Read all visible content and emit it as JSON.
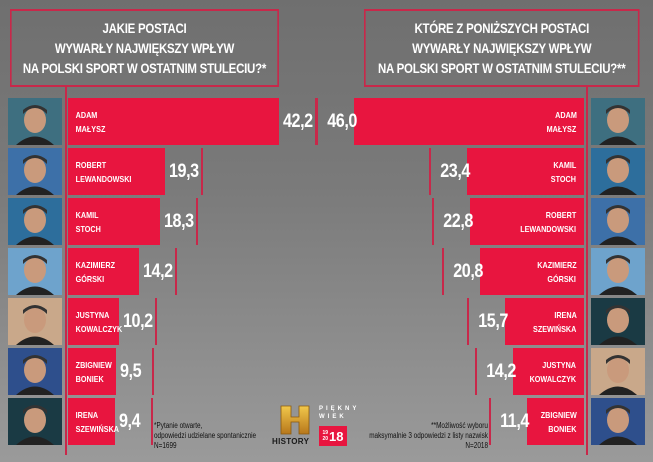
{
  "left": {
    "title_lines": [
      "JAKIE POSTACI",
      "WYWARŁY NAJWIĘKSZY WPŁYW",
      "NA POLSKI SPORT W OSTATNIM STULECIU?*"
    ],
    "rows": [
      {
        "first": "ADAM",
        "last": "MAŁYSZ",
        "value": "42,2"
      },
      {
        "first": "ROBERT",
        "last": "LEWANDOWSKI",
        "value": "19,3"
      },
      {
        "first": "KAMIL",
        "last": "STOCH",
        "value": "18,3"
      },
      {
        "first": "KAZIMIERZ",
        "last": "GÓRSKI",
        "value": "14,2"
      },
      {
        "first": "JUSTYNA",
        "last": "KOWALCZYK",
        "value": "10,2"
      },
      {
        "first": "ZBIGNIEW",
        "last": "BONIEK",
        "value": "9,5"
      },
      {
        "first": "IRENA",
        "last": "SZEWIŃSKA",
        "value": "9,4"
      }
    ],
    "footnote": [
      "*Pytanie otwarte,",
      "odpowiedzi udzielane spontanicznie",
      "N=1699"
    ]
  },
  "right": {
    "title_lines": [
      "KTÓRE Z PONIŻSZYCH POSTACI",
      "WYWARŁY NAJWIĘKSZY WPŁYW",
      "NA POLSKI SPORT W OSTATNIM STULECIU?**"
    ],
    "rows": [
      {
        "first": "ADAM",
        "last": "MAŁYSZ",
        "value": "46,0"
      },
      {
        "first": "KAMIL",
        "last": "STOCH",
        "value": "23,4"
      },
      {
        "first": "ROBERT",
        "last": "LEWANDOWSKI",
        "value": "22,8"
      },
      {
        "first": "KAZIMIERZ",
        "last": "GÓRSKI",
        "value": "20,8"
      },
      {
        "first": "IRENA",
        "last": "SZEWIŃSKA",
        "value": "15,7"
      },
      {
        "first": "JUSTYNA",
        "last": "KOWALCZYK",
        "value": "14,2"
      },
      {
        "first": "ZBIGNIEW",
        "last": "BONIEK",
        "value": "11,4"
      }
    ],
    "footnote": [
      "**Możliwość wyboru",
      "maksymalnie 3 odpowiedzi z listy nazwisk",
      "N=2018"
    ]
  },
  "logos": {
    "history": "HISTORY",
    "piekny": "PIĘKNY",
    "wiek": "WIEK",
    "years_small_top": "19",
    "years_small_bottom": "20",
    "years_big": "18"
  },
  "colors": {
    "bar": "#e8153f",
    "border": "#c8284a",
    "background": "#7a7a7a"
  },
  "chart_data": [
    {
      "type": "bar",
      "orientation": "horizontal",
      "title": "JAKIE POSTACI WYWARŁY NAJWIĘKSZY WPŁYW NA POLSKI SPORT W OSTATNIM STULECIU?*",
      "categories": [
        "Adam Małysz",
        "Robert Lewandowski",
        "Kamil Stoch",
        "Kazimierz Górski",
        "Justyna Kowalczyk",
        "Zbigniew Boniek",
        "Irena Szewińska"
      ],
      "values": [
        42.2,
        19.3,
        18.3,
        14.2,
        10.2,
        9.5,
        9.4
      ],
      "unit": "%",
      "note": "*Pytanie otwarte, odpowiedzi udzielane spontanicznie N=1699"
    },
    {
      "type": "bar",
      "orientation": "horizontal",
      "title": "KTÓRE Z PONIŻSZYCH POSTACI WYWARŁY NAJWIĘKSZY WPŁYW NA POLSKI SPORT W OSTATNIM STULECIU?**",
      "categories": [
        "Adam Małysz",
        "Kamil Stoch",
        "Robert Lewandowski",
        "Kazimierz Górski",
        "Irena Szewińska",
        "Justyna Kowalczyk",
        "Zbigniew Boniek"
      ],
      "values": [
        46.0,
        23.4,
        22.8,
        20.8,
        15.7,
        14.2,
        11.4
      ],
      "unit": "%",
      "note": "**Możliwość wyboru maksymalnie 3 odpowiedzi z listy nazwisk N=2018"
    }
  ]
}
